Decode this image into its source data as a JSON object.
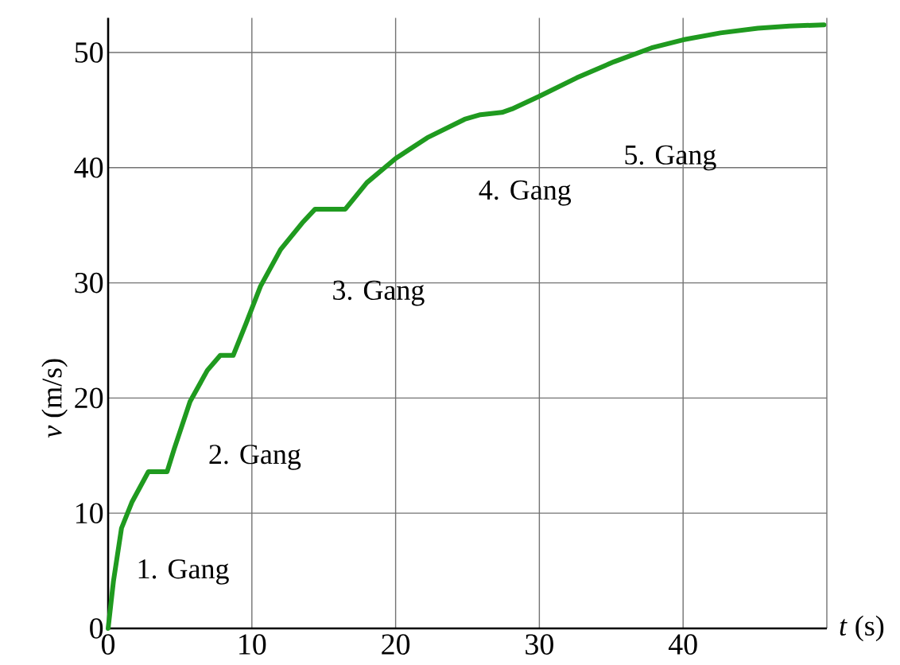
{
  "chart_data": {
    "type": "line",
    "xlabel": "*t* (s)",
    "ylabel": "*v* (m/s)",
    "x": [
      0,
      0.37,
      0.93,
      1.67,
      2.8,
      4.1,
      4.6,
      5.7,
      6.9,
      7.8,
      8.7,
      9.6,
      10.6,
      12.0,
      13.5,
      14.4,
      16.5,
      18.0,
      20,
      22.2,
      24.8,
      25.9,
      27.4,
      28.1,
      30,
      32.6,
      35.2,
      37.8,
      40,
      42.6,
      45.2,
      47.4,
      49.8
    ],
    "values": [
      0,
      4.1,
      8.7,
      11,
      13.6,
      13.6,
      15.6,
      19.7,
      22.4,
      23.7,
      23.7,
      26.5,
      29.7,
      32.9,
      35.2,
      36.4,
      36.4,
      38.7,
      40.8,
      42.6,
      44.2,
      44.6,
      44.8,
      45.1,
      46.2,
      47.8,
      49.2,
      50.4,
      51.1,
      51.7,
      52.1,
      52.3,
      52.4
    ],
    "color": "#1f9a1f",
    "marker": "none",
    "line_style": "solid",
    "grid": true,
    "xlim": [
      0,
      50
    ],
    "ylim": [
      0,
      53
    ],
    "xticks": [
      0,
      10,
      20,
      30,
      40,
      {
        "value": 50,
        "label": null
      }
    ],
    "yticks": [
      0,
      10,
      20,
      30,
      40,
      50
    ],
    "annotations": [
      "1. Gang",
      "2. Gang",
      "3. Gang",
      "4. Gang",
      "5. Gang"
    ]
  }
}
